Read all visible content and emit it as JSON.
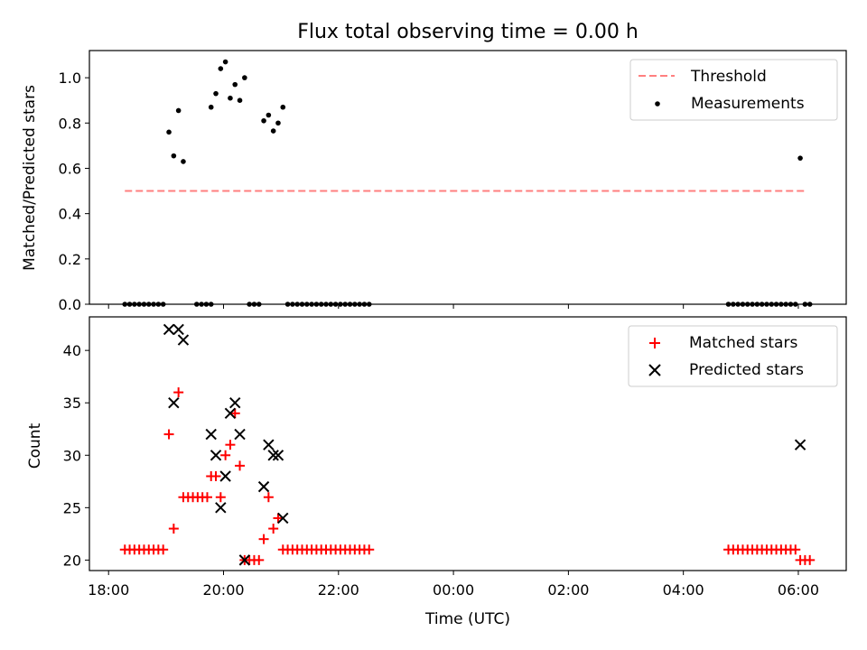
{
  "title": "Flux total observing time = 0.00 h",
  "xlabel": "Time (UTC)",
  "x_tick_labels": [
    "18:00",
    "20:00",
    "22:00",
    "00:00",
    "02:00",
    "04:00",
    "06:00"
  ],
  "colors": {
    "threshold": "#ff7f7f",
    "measurements": "#000000",
    "matched": "#ff0000",
    "predicted": "#000000"
  },
  "chart_data": [
    {
      "type": "scatter",
      "ylabel": "Matched/Predicted stars",
      "xlim": [
        "17:40",
        "06:50"
      ],
      "ylim": [
        0,
        1.12
      ],
      "y_ticks": [
        "0.0",
        "0.2",
        "0.4",
        "0.6",
        "0.8",
        "1.0"
      ],
      "legend_position": "top-right",
      "legend": [
        "Threshold",
        "Measurements"
      ],
      "threshold": {
        "name": "Threshold",
        "y": 0.5,
        "x": [
          "18:17",
          "06:07"
        ],
        "style": "dashed"
      },
      "series": [
        {
          "name": "Measurements",
          "x": [
            "18:17",
            "18:22",
            "18:27",
            "18:32",
            "18:37",
            "18:42",
            "18:47",
            "18:52",
            "18:57",
            "19:03",
            "19:08",
            "19:13",
            "19:18",
            "19:32",
            "19:37",
            "19:42",
            "19:47",
            "19:47",
            "19:52",
            "19:57",
            "20:02",
            "20:07",
            "20:12",
            "20:17",
            "20:22",
            "20:27",
            "20:32",
            "20:37",
            "20:42",
            "20:47",
            "20:52",
            "20:57",
            "21:02",
            "21:07",
            "21:12",
            "21:17",
            "21:22",
            "21:27",
            "21:32",
            "21:37",
            "21:42",
            "21:47",
            "21:52",
            "21:57",
            "22:02",
            "22:07",
            "22:12",
            "22:17",
            "22:22",
            "22:27",
            "22:32",
            "04:47",
            "04:52",
            "04:57",
            "05:02",
            "05:07",
            "05:12",
            "05:17",
            "05:22",
            "05:27",
            "05:32",
            "05:37",
            "05:42",
            "05:47",
            "05:52",
            "05:57",
            "06:02",
            "06:07",
            "06:12"
          ],
          "y": [
            0,
            0,
            0,
            0,
            0,
            0,
            0,
            0,
            0,
            0.76,
            0.655,
            0.855,
            0.63,
            0,
            0,
            0,
            0,
            0.87,
            0.93,
            1.04,
            1.07,
            0.91,
            0.97,
            0.9,
            1.0,
            0,
            0,
            0,
            0.81,
            0.835,
            0.765,
            0.8,
            0.87,
            0,
            0,
            0,
            0,
            0,
            0,
            0,
            0,
            0,
            0,
            0,
            0,
            0,
            0,
            0,
            0,
            0,
            0,
            0,
            0,
            0,
            0,
            0,
            0,
            0,
            0,
            0,
            0,
            0,
            0,
            0,
            0,
            0,
            0.645,
            0,
            0
          ]
        }
      ]
    },
    {
      "type": "scatter",
      "ylabel": "Count",
      "xlim": [
        "17:40",
        "06:50"
      ],
      "ylim": [
        19,
        43.2
      ],
      "y_ticks": [
        "20",
        "25",
        "30",
        "35",
        "40"
      ],
      "legend_position": "top-right",
      "legend": [
        "Matched stars",
        "Predicted stars"
      ],
      "series": [
        {
          "name": "Matched stars",
          "marker": "+",
          "x": [
            "18:17",
            "18:22",
            "18:27",
            "18:32",
            "18:37",
            "18:42",
            "18:47",
            "18:52",
            "18:57",
            "19:03",
            "19:08",
            "19:13",
            "19:18",
            "19:23",
            "19:28",
            "19:33",
            "19:38",
            "19:43",
            "19:47",
            "19:52",
            "19:57",
            "20:02",
            "20:07",
            "20:12",
            "20:17",
            "20:22",
            "20:27",
            "20:32",
            "20:37",
            "20:42",
            "20:47",
            "20:52",
            "20:57",
            "21:02",
            "21:07",
            "21:12",
            "21:17",
            "21:22",
            "21:27",
            "21:32",
            "21:37",
            "21:42",
            "21:47",
            "21:52",
            "21:57",
            "22:02",
            "22:07",
            "22:12",
            "22:17",
            "22:22",
            "22:27",
            "22:32",
            "04:47",
            "04:52",
            "04:57",
            "05:02",
            "05:07",
            "05:12",
            "05:17",
            "05:22",
            "05:27",
            "05:32",
            "05:37",
            "05:42",
            "05:47",
            "05:52",
            "05:57",
            "06:02",
            "06:07",
            "06:12"
          ],
          "y": [
            21,
            21,
            21,
            21,
            21,
            21,
            21,
            21,
            21,
            32,
            23,
            36,
            26,
            26,
            26,
            26,
            26,
            26,
            28,
            28,
            26,
            30,
            31,
            34,
            29,
            20,
            20,
            20,
            20,
            22,
            26,
            23,
            24,
            21,
            21,
            21,
            21,
            21,
            21,
            21,
            21,
            21,
            21,
            21,
            21,
            21,
            21,
            21,
            21,
            21,
            21,
            21,
            21,
            21,
            21,
            21,
            21,
            21,
            21,
            21,
            21,
            21,
            21,
            21,
            21,
            21,
            21,
            20,
            20,
            20
          ]
        },
        {
          "name": "Predicted stars",
          "marker": "x",
          "x": [
            "19:03",
            "19:08",
            "19:13",
            "19:18",
            "19:47",
            "19:52",
            "19:57",
            "20:02",
            "20:07",
            "20:12",
            "20:17",
            "20:22",
            "20:42",
            "20:47",
            "20:52",
            "20:57",
            "21:02",
            "06:02"
          ],
          "y": [
            42,
            35,
            42,
            41,
            32,
            30,
            25,
            28,
            34,
            35,
            32,
            20,
            27,
            31,
            30,
            30,
            24,
            31
          ]
        }
      ]
    }
  ]
}
